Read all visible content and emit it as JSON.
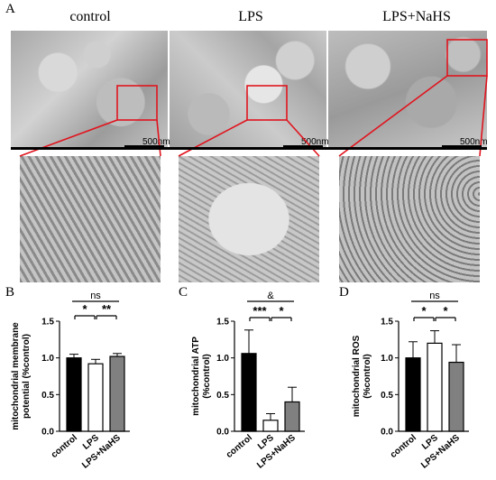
{
  "panel_letters": {
    "a": "A",
    "b": "B",
    "c": "C",
    "d": "D"
  },
  "conditions": [
    "control",
    "LPS",
    "LPS+NaHS"
  ],
  "scale_bar_label": "500nm",
  "chart_data": [
    {
      "type": "bar",
      "panel": "B",
      "categories": [
        "control",
        "LPS",
        "LPS+NaHS"
      ],
      "values": [
        1.0,
        0.92,
        1.02
      ],
      "errors": [
        0.05,
        0.06,
        0.04
      ],
      "colors": [
        "#000000",
        "#ffffff",
        "#808080"
      ],
      "ylabel": "mitochondrial membrane potential (%control)",
      "ylabel_lines": [
        "mitochondrial membrane",
        "potential (%control)"
      ],
      "ylim": [
        0,
        1.5
      ],
      "yticks": [
        "0.0",
        "0.5",
        "1.0",
        "1.5"
      ],
      "significance": [
        {
          "label": "*",
          "from": 0,
          "to": 1
        },
        {
          "label": "**",
          "from": 1,
          "to": 2
        },
        {
          "label": "ns",
          "from": 0,
          "to": 2
        }
      ]
    },
    {
      "type": "bar",
      "panel": "C",
      "categories": [
        "control",
        "LPS",
        "LPS+NaHS"
      ],
      "values": [
        1.06,
        0.15,
        0.4
      ],
      "errors": [
        0.32,
        0.09,
        0.2
      ],
      "colors": [
        "#000000",
        "#ffffff",
        "#808080"
      ],
      "ylabel": "mitochondrial ATP (%control)",
      "ylabel_lines": [
        "mitochondrial ATP",
        "(%control)"
      ],
      "ylim": [
        0,
        1.5
      ],
      "yticks": [
        "0.0",
        "0.5",
        "1.0",
        "1.5"
      ],
      "significance": [
        {
          "label": "***",
          "from": 0,
          "to": 1
        },
        {
          "label": "*",
          "from": 1,
          "to": 2
        },
        {
          "label": "&",
          "from": 0,
          "to": 2
        }
      ]
    },
    {
      "type": "bar",
      "panel": "D",
      "categories": [
        "control",
        "LPS",
        "LPS+NaHS"
      ],
      "values": [
        1.0,
        1.2,
        0.94
      ],
      "errors": [
        0.22,
        0.17,
        0.24
      ],
      "colors": [
        "#000000",
        "#ffffff",
        "#808080"
      ],
      "ylabel": "mitochondrial ROS (%control)",
      "ylabel_lines": [
        "mitochondrial ROS",
        "(%control)"
      ],
      "ylim": [
        0,
        1.5
      ],
      "yticks": [
        "0.0",
        "0.5",
        "1.0",
        "1.5"
      ],
      "significance": [
        {
          "label": "*",
          "from": 0,
          "to": 1
        },
        {
          "label": "*",
          "from": 1,
          "to": 2
        },
        {
          "label": "ns",
          "from": 0,
          "to": 2
        }
      ]
    }
  ]
}
